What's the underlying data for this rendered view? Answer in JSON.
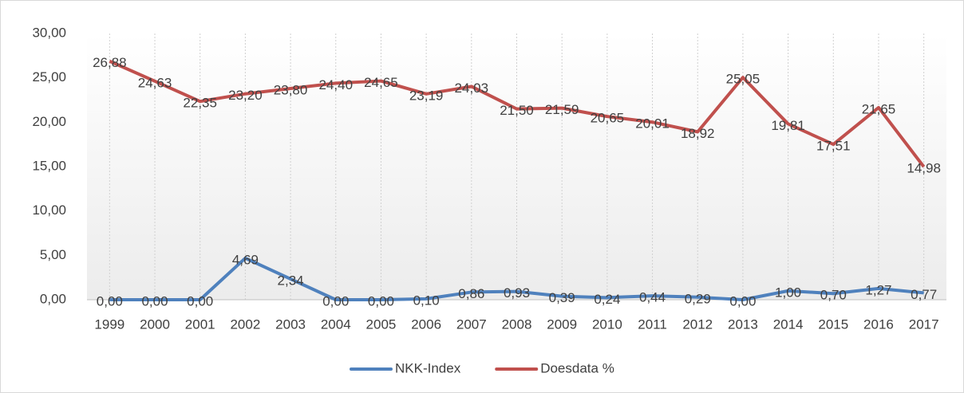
{
  "chart_data": {
    "type": "line",
    "categories": [
      "1999",
      "2000",
      "2001",
      "2002",
      "2003",
      "2004",
      "2005",
      "2006",
      "2007",
      "2008",
      "2009",
      "2010",
      "2011",
      "2012",
      "2013",
      "2014",
      "2015",
      "2016",
      "2017"
    ],
    "series": [
      {
        "name": "NKK-Index",
        "color": "#4f81bd",
        "values": [
          0,
          0,
          0,
          4.69,
          2.34,
          0,
          0,
          0.1,
          0.86,
          0.93,
          0.39,
          0.24,
          0.44,
          0.29,
          0,
          1.0,
          0.7,
          1.27,
          0.77
        ],
        "value_labels": [
          "0,00",
          "0,00",
          "0,00",
          "4,69",
          "2,34",
          "0,00",
          "0,00",
          "0,10",
          "0,86",
          "0,93",
          "0,39",
          "0,24",
          "0,44",
          "0,29",
          "0,00",
          "1,00",
          "0,70",
          "1,27",
          "0,77"
        ]
      },
      {
        "name": "Doesdata %",
        "color": "#c0504d",
        "values": [
          26.88,
          24.63,
          22.35,
          23.2,
          23.8,
          24.4,
          24.65,
          23.19,
          24.03,
          21.5,
          21.59,
          20.65,
          20.01,
          18.92,
          25.05,
          19.81,
          17.51,
          21.65,
          14.98
        ],
        "value_labels": [
          "26,88",
          "24,63",
          "22,35",
          "23,20",
          "23,80",
          "24,40",
          "24,65",
          "23,19",
          "24,03",
          "21,50",
          "21,59",
          "20,65",
          "20,01",
          "18,92",
          "25,05",
          "19,81",
          "17,51",
          "21,65",
          "14,98"
        ]
      }
    ],
    "ylim": [
      0,
      30
    ],
    "yticks": [
      {
        "value": 0,
        "label": "0,00"
      },
      {
        "value": 5,
        "label": "5,00"
      },
      {
        "value": 10,
        "label": "10,00"
      },
      {
        "value": 15,
        "label": "15,00"
      },
      {
        "value": 20,
        "label": "20,00"
      },
      {
        "value": 25,
        "label": "25,00"
      },
      {
        "value": 30,
        "label": "30,00"
      }
    ],
    "legend": "bottom"
  }
}
